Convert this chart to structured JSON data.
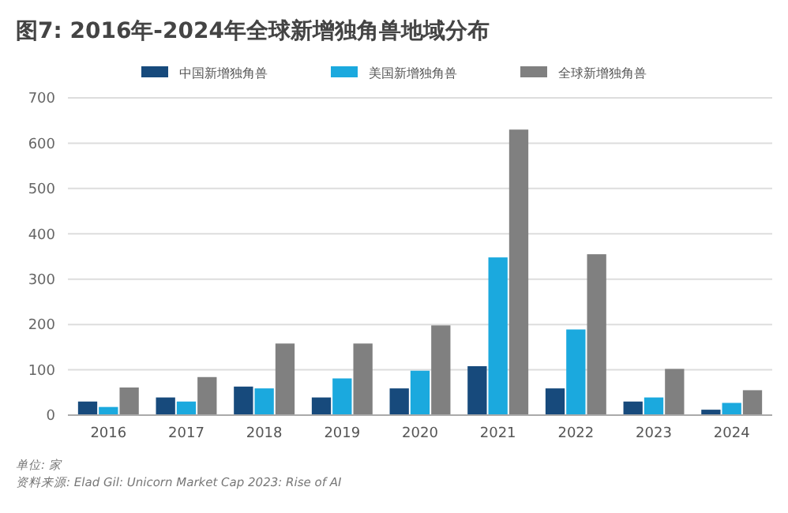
{
  "chart_data": {
    "type": "bar",
    "title": "图7: 2016年-2024年全球新增独角兽地域分布",
    "categories": [
      "2016",
      "2017",
      "2018",
      "2019",
      "2020",
      "2021",
      "2022",
      "2023",
      "2024"
    ],
    "series": [
      {
        "name": "中国新增独角兽",
        "color": "#174a7c",
        "values": [
          30,
          39,
          63,
          39,
          59,
          108,
          59,
          30,
          12
        ]
      },
      {
        "name": "美国新增独角兽",
        "color": "#1ba9de",
        "values": [
          18,
          30,
          59,
          81,
          98,
          348,
          189,
          39,
          27
        ]
      },
      {
        "name": "全球新增独角兽",
        "color": "#808080",
        "values": [
          61,
          84,
          158,
          158,
          198,
          630,
          355,
          102,
          55
        ]
      }
    ],
    "ylim": [
      0,
      700
    ],
    "yticks": [
      0,
      100,
      200,
      300,
      400,
      500,
      600,
      700
    ],
    "grid": "y",
    "legend": "top",
    "annotations": [
      "单位: 家",
      "资料来源: Elad Gil: Unicorn Market Cap 2023: Rise of AI"
    ]
  }
}
